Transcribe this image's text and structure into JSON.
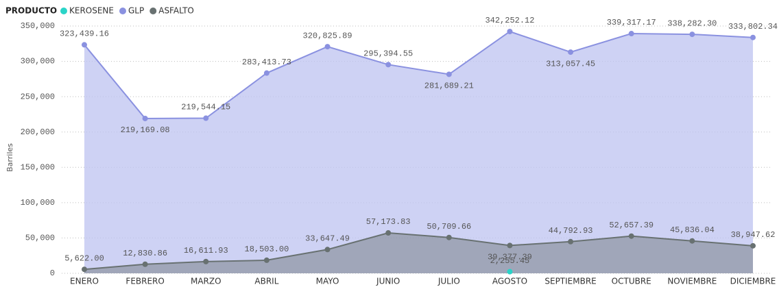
{
  "chart_data": {
    "type": "area",
    "legend_title": "PRODUCTO",
    "y_label": "Barriles",
    "categories": [
      "ENERO",
      "FEBRERO",
      "MARZO",
      "ABRIL",
      "MAYO",
      "JUNIO",
      "JULIO",
      "AGOSTO",
      "SEPTIEMBRE",
      "OCTUBRE",
      "NOVIEMBRE",
      "DICIEMBRE"
    ],
    "series": [
      {
        "name": "KEROSENE",
        "color": "#2ad4c8",
        "values": [
          null,
          null,
          null,
          null,
          null,
          null,
          null,
          2255.45,
          null,
          null,
          null,
          null
        ],
        "value_labels": [
          null,
          null,
          null,
          null,
          null,
          null,
          null,
          "2,255.45",
          null,
          null,
          null,
          null
        ]
      },
      {
        "name": "GLP",
        "color": "#8a91e0",
        "values": [
          323439.16,
          219169.08,
          219544.15,
          283413.73,
          320825.89,
          295394.55,
          281689.21,
          342252.12,
          313057.45,
          339317.17,
          338282.3,
          333802.34
        ],
        "value_labels": [
          "323,439.16",
          "219,169.08",
          "219,544.15",
          "283,413.73",
          "320,825.89",
          "295,394.55",
          "281,689.21",
          "342,252.12",
          "313,057.45",
          "339,317.17",
          "338,282.30",
          "333,802.34"
        ]
      },
      {
        "name": "ASFALTO",
        "color": "#687171",
        "values": [
          5622.0,
          12830.86,
          16611.93,
          18503.0,
          33647.49,
          57173.83,
          50709.66,
          39377.39,
          44792.93,
          52657.39,
          45836.04,
          38947.62
        ],
        "value_labels": [
          "5,622.00",
          "12,830.86",
          "16,611.93",
          "18,503.00",
          "33,647.49",
          "57,173.83",
          "50,709.66",
          "39,377.39",
          "44,792.93",
          "52,657.39",
          "45,836.04",
          "38,947.62"
        ]
      }
    ],
    "ylim": [
      0,
      350000
    ],
    "yticks": [
      0,
      {
        "value": 50000,
        "label": "50,000"
      },
      {
        "value": 100000,
        "label": "100,000"
      },
      {
        "value": 150000,
        "label": "150,000"
      },
      {
        "value": 200000,
        "label": "200,000"
      },
      {
        "value": 250000,
        "label": "250,000"
      },
      {
        "value": 300000,
        "label": "300,000"
      },
      {
        "value": 350000,
        "label": "350,000"
      }
    ],
    "grid": true
  }
}
